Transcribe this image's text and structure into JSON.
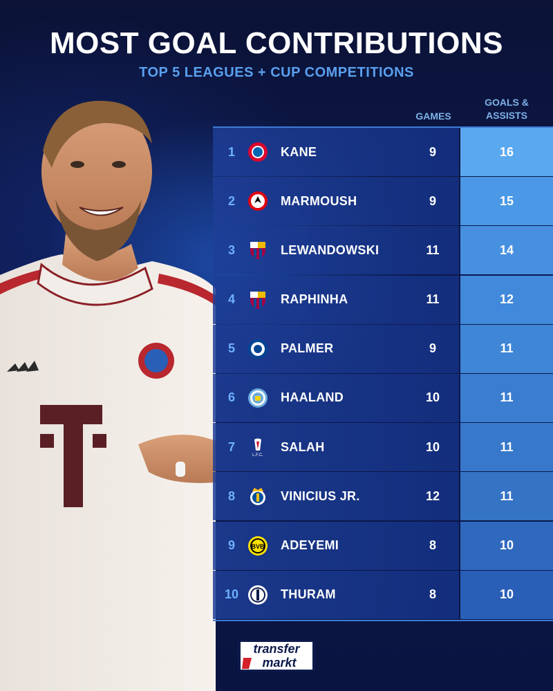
{
  "title": "MOST GOAL CONTRIBUTIONS",
  "subtitle": "TOP 5 LEAGUES + CUP COMPETITIONS",
  "columns": {
    "games": "GAMES",
    "ga_line1": "GOALS &",
    "ga_line2": "ASSISTS"
  },
  "rows": [
    {
      "rank": "1",
      "name": "KANE",
      "club_icon": "bayern-munich-crest-icon",
      "games": "9",
      "ga": "16"
    },
    {
      "rank": "2",
      "name": "MARMOUSH",
      "club_icon": "eintracht-frankfurt-crest-icon",
      "games": "9",
      "ga": "15"
    },
    {
      "rank": "3",
      "name": "LEWANDOWSKI",
      "club_icon": "fc-barcelona-crest-icon",
      "games": "11",
      "ga": "14"
    },
    {
      "rank": "4",
      "name": "RAPHINHA",
      "club_icon": "fc-barcelona-crest-icon",
      "games": "11",
      "ga": "12"
    },
    {
      "rank": "5",
      "name": "PALMER",
      "club_icon": "chelsea-crest-icon",
      "games": "9",
      "ga": "11"
    },
    {
      "rank": "6",
      "name": "HAALAND",
      "club_icon": "manchester-city-crest-icon",
      "games": "10",
      "ga": "11"
    },
    {
      "rank": "7",
      "name": "SALAH",
      "club_icon": "liverpool-crest-icon",
      "games": "10",
      "ga": "11"
    },
    {
      "rank": "8",
      "name": "VINICIUS JR.",
      "club_icon": "real-madrid-crest-icon",
      "games": "12",
      "ga": "11"
    },
    {
      "rank": "9",
      "name": "ADEYEMI",
      "club_icon": "borussia-dortmund-crest-icon",
      "games": "8",
      "ga": "10"
    },
    {
      "rank": "10",
      "name": "THURAM",
      "club_icon": "inter-milan-crest-icon",
      "games": "8",
      "ga": "10"
    }
  ],
  "brand": {
    "line1": "transfer",
    "line2": "markt"
  },
  "colors": {
    "ga_high": "#5aa8f0",
    "ga_low": "#2a5fb8",
    "rank": "#6fb0ff",
    "subtitle": "#5aa0ee"
  },
  "player_image": "footballer-in-white-bayern-shirt-photo"
}
